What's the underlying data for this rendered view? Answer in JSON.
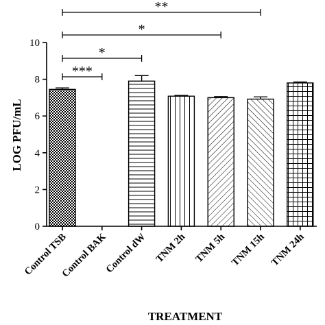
{
  "chart_data": {
    "type": "bar",
    "xlabel": "TREATMENT",
    "ylabel": "LOG PFU/mL",
    "ylim": [
      0,
      10
    ],
    "yticks": [
      0,
      2,
      4,
      6,
      8,
      10
    ],
    "categories": [
      "Control TSB",
      "Control BAK",
      "Control dW",
      "TNM 2h",
      "TNM 5h",
      "TNM 15h",
      "TNM 24h"
    ],
    "values": [
      7.45,
      0,
      7.9,
      7.08,
      7.0,
      6.92,
      7.8
    ],
    "errors": [
      0.08,
      0,
      0.3,
      0.04,
      0.06,
      0.12,
      0.05
    ],
    "patterns": [
      "checker",
      "none",
      "horizontal",
      "vertical",
      "diagonal-up",
      "diagonal-down",
      "grid"
    ],
    "significance": [
      {
        "from": "Control TSB",
        "to": "Control BAK",
        "label": "***"
      },
      {
        "from": "Control TSB",
        "to": "Control dW",
        "label": "*"
      },
      {
        "from": "Control TSB",
        "to": "TNM 5h",
        "label": "*"
      },
      {
        "from": "Control TSB",
        "to": "TNM 15h",
        "label": "**"
      }
    ],
    "grid": false,
    "legend": false
  }
}
